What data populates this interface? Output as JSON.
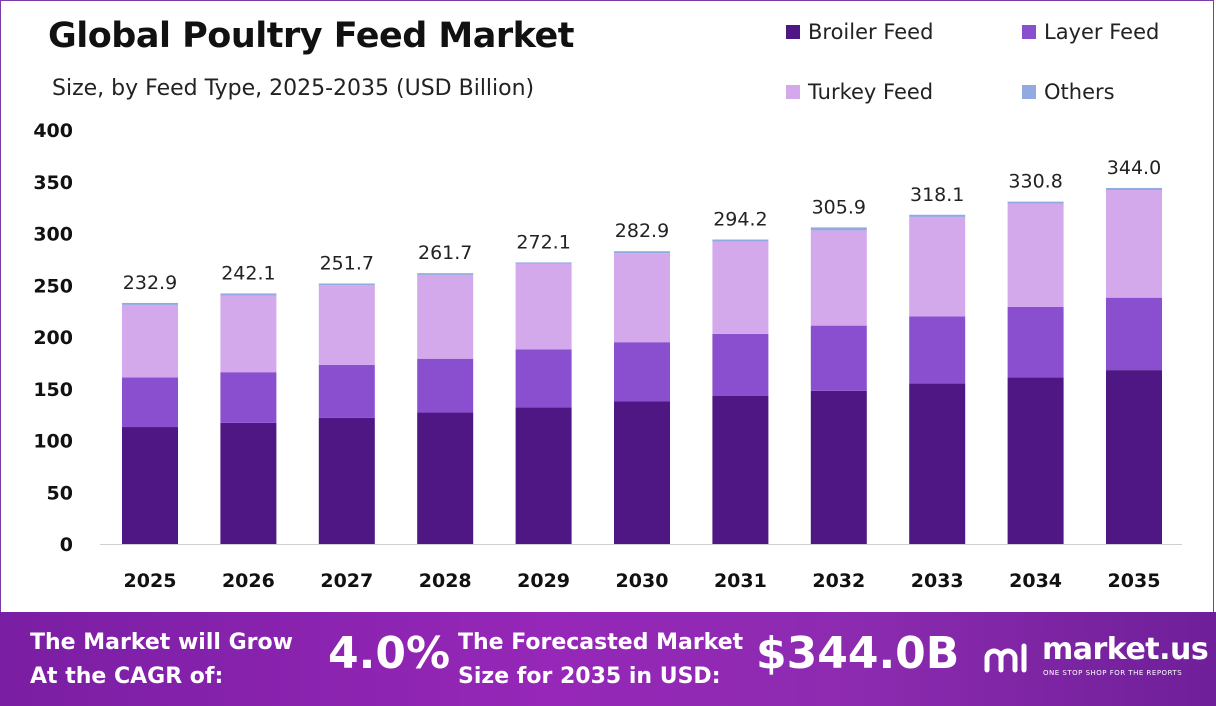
{
  "title": "Global Poultry Feed Market",
  "subtitle": "Size, by Feed Type, 2025-2035 (USD Billion)",
  "legend": [
    {
      "label": "Broiler Feed",
      "color": "#4e1783"
    },
    {
      "label": "Layer Feed",
      "color": "#8a4fcf"
    },
    {
      "label": "Turkey Feed",
      "color": "#d3a9ec"
    },
    {
      "label": "Others",
      "color": "#93a9e2"
    }
  ],
  "chart_data": {
    "type": "bar",
    "stacked": true,
    "categories": [
      "2025",
      "2026",
      "2027",
      "2028",
      "2029",
      "2030",
      "2031",
      "2032",
      "2033",
      "2034",
      "2035"
    ],
    "series": [
      {
        "name": "Broiler Feed",
        "color": "#4e1783",
        "values": [
          113,
          117,
          122,
          127,
          132,
          138,
          143,
          148,
          155,
          161,
          168
        ]
      },
      {
        "name": "Layer Feed",
        "color": "#8a4fcf",
        "values": [
          48,
          49,
          51,
          52,
          56,
          57,
          60,
          63,
          65,
          68,
          70
        ]
      },
      {
        "name": "Turkey Feed",
        "color": "#d3a9ec",
        "values": [
          70,
          74,
          77,
          81,
          83,
          86,
          89,
          92,
          96,
          100,
          104
        ]
      },
      {
        "name": "Others",
        "color": "#93a9e2",
        "values": [
          1.9,
          2.1,
          1.7,
          1.7,
          1.1,
          1.9,
          2.2,
          2.9,
          2.1,
          1.8,
          2.0
        ]
      }
    ],
    "totals": [
      "232.9",
      "242.1",
      "251.7",
      "261.7",
      "272.1",
      "282.9",
      "294.2",
      "305.9",
      "318.1",
      "330.8",
      "344.0"
    ],
    "yticks": [
      "0",
      "50",
      "100",
      "150",
      "200",
      "250",
      "300",
      "350",
      "400"
    ],
    "ylim": [
      0,
      400
    ],
    "grid": false,
    "legend_position": "top-right"
  },
  "banner": {
    "cagr_text_line1": "The Market will Grow",
    "cagr_text_line2": "At the CAGR of:",
    "cagr_value": "4.0%",
    "forecast_text_line1": "The Forecasted Market",
    "forecast_text_line2": "Size for 2035 in USD:",
    "forecast_value": "$344.0B",
    "brand_name": "market.us",
    "brand_tagline": "ONE STOP SHOP FOR THE REPORTS"
  }
}
